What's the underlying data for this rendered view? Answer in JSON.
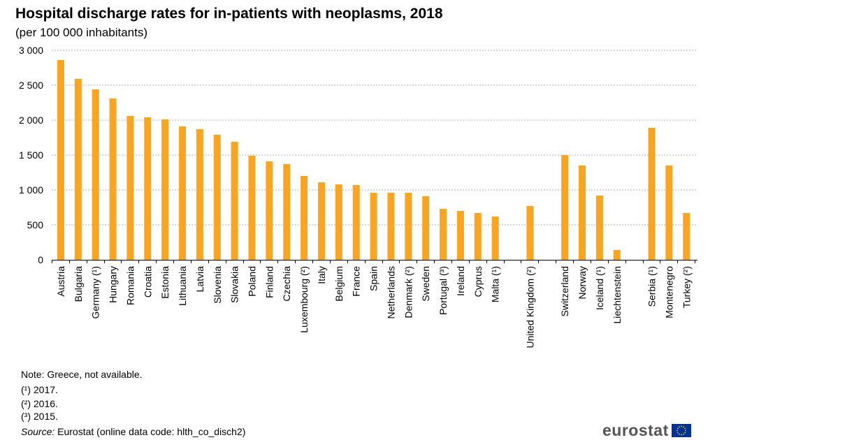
{
  "title": "Hospital discharge rates for in-patients with neoplasms, 2018",
  "subtitle": "(per 100 000 inhabitants)",
  "chart_data": {
    "type": "bar",
    "categories": [
      "Austria",
      "Bulgaria",
      "Germany (¹)",
      "Hungary",
      "Romania",
      "Croatia",
      "Estonia",
      "Lithuania",
      "Latvia",
      "Slovenia",
      "Slovakia",
      "Poland",
      "Finland",
      "Czechia",
      "Luxembourg (²)",
      "Italy",
      "Belgium",
      "France",
      "Spain",
      "Netherlands",
      "Denmark (²)",
      "Sweden",
      "Portugal (³)",
      "Ireland",
      "Cyprus",
      "Malta (¹)",
      "United Kingdom (²)",
      "Switzerland",
      "Norway",
      "Iceland (¹)",
      "Liechtenstein",
      "Serbia (¹)",
      "Montenegro",
      "Turkey (²)"
    ],
    "groups": [
      26,
      1,
      4,
      3
    ],
    "values": [
      2860,
      2590,
      2440,
      2310,
      2060,
      2040,
      2010,
      1910,
      1870,
      1790,
      1690,
      1490,
      1410,
      1370,
      1200,
      1110,
      1080,
      1070,
      960,
      960,
      960,
      910,
      730,
      700,
      670,
      620,
      770,
      1500,
      1350,
      920,
      140,
      1890,
      1350,
      670
    ],
    "yticks": [
      "0",
      "500",
      "1 000",
      "1 500",
      "2 000",
      "2 500",
      "3 000"
    ],
    "ylim": [
      0,
      3000
    ],
    "grid": true,
    "bar_color": "#F9A521"
  },
  "notes": {
    "main": "Note: Greece, not available.",
    "fn1": "(¹) 2017.",
    "fn2": "(²) 2016.",
    "fn3": "(³) 2015.",
    "source_label": "Source:",
    "source_text": " Eurostat (online data code: hlth_co_disch2)"
  },
  "logo": {
    "text": "eurostat",
    "flag_color": "#003399",
    "star_color": "#FFCC00"
  }
}
